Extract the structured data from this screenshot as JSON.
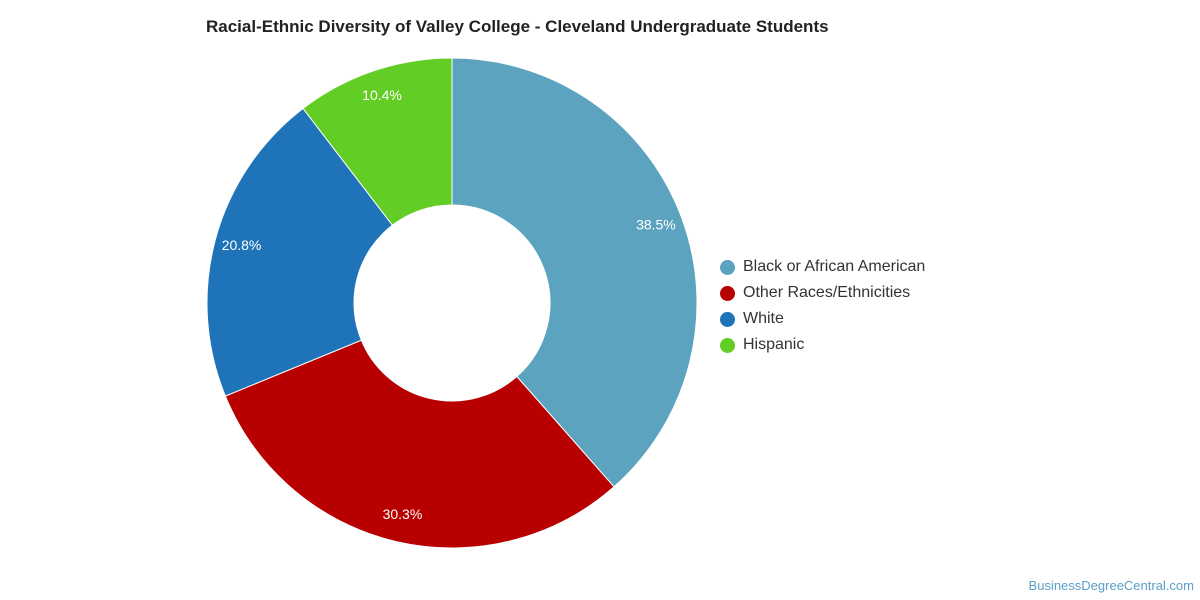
{
  "title": "Racial-Ethnic Diversity of Valley College - Cleveland Undergraduate Students",
  "watermark": "BusinessDegreeCentral.com",
  "chart_data": {
    "type": "pie",
    "donut": true,
    "title": "Racial-Ethnic Diversity of Valley College - Cleveland Undergraduate Students",
    "legend_position": "right",
    "series": [
      {
        "name": "",
        "slices": [
          {
            "label": "Black or African American",
            "value": 38.5,
            "display": "38.5%",
            "color": "#5ca3bf"
          },
          {
            "label": "Other Races/Ethnicities",
            "value": 30.3,
            "display": "30.3%",
            "color": "#b80000"
          },
          {
            "label": "White",
            "value": 20.8,
            "display": "20.8%",
            "color": "#1f73b9"
          },
          {
            "label": "Hispanic",
            "value": 10.4,
            "display": "10.4%",
            "color": "#62cd24"
          }
        ]
      }
    ]
  }
}
